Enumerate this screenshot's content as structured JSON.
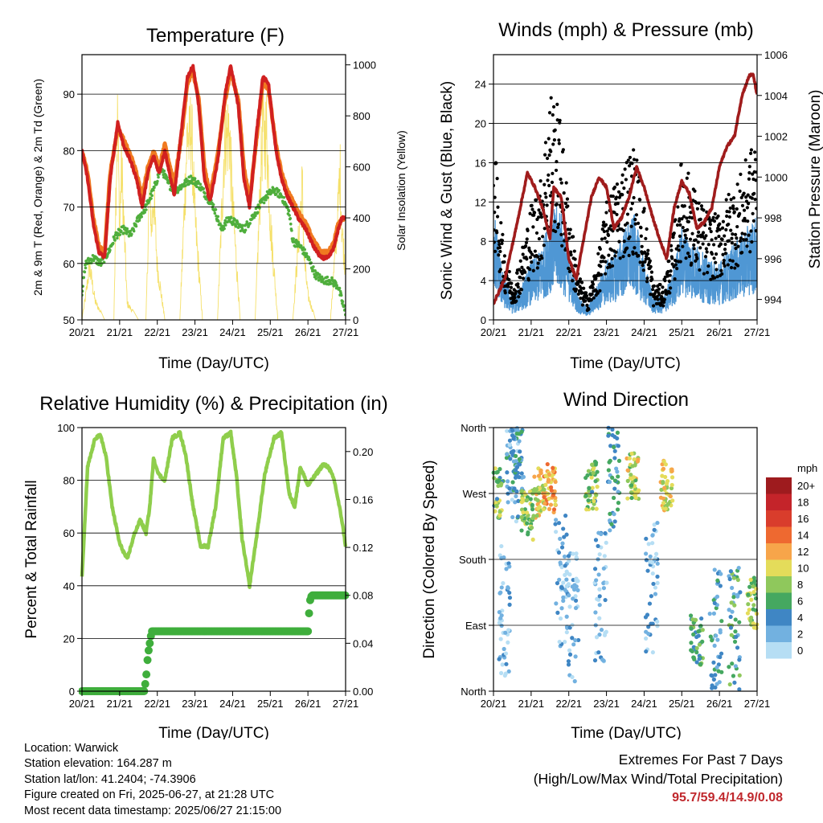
{
  "footer": {
    "location": "Location: Warwick",
    "elevation": "Station elevation: 164.287 m",
    "latlon": "Station lat/lon: 41.2404; -74.3906",
    "created": "Figure created on Fri, 2025-06-27, at 21:28 UTC",
    "recent": "Most recent data timestamp: 2025/06/27 21:15:00"
  },
  "extremes": {
    "line1": "Extremes For Past 7 Days",
    "line2": "(High/Low/Max Wind/Total Precipitation)",
    "values": "95.7/59.4/14.9/0.08"
  },
  "colors": {
    "temp_2m": "#d12020",
    "temp_9m": "#f07a20",
    "dewpoint": "#4fae3c",
    "solar": "#f5e06a",
    "wind": "#4f97d4",
    "gust": "#000000",
    "pressure": "#a01c1c",
    "rh": "#8fce4c",
    "rain": "#3fae3c"
  },
  "chart_data": [
    {
      "type": "line",
      "title": "Temperature (F)",
      "xlabel": "Time (Day/UTC)",
      "ylabel": "2m & 9m T (Red, Orange) & 2m Td (Green)",
      "y2label": "Solar Insolation (Yellow)",
      "x_ticks": [
        "20/21",
        "21/21",
        "22/21",
        "23/21",
        "24/21",
        "25/21",
        "26/21",
        "27/21"
      ],
      "xlim": [
        0,
        7
      ],
      "ylim": [
        50,
        97
      ],
      "y_ticks": [
        50,
        60,
        70,
        80,
        90
      ],
      "y2lim": [
        0,
        1040
      ],
      "y2_ticks": [
        0,
        200,
        400,
        600,
        800,
        1000
      ],
      "grid": true,
      "series": [
        {
          "key": "temp_2m",
          "axis": "left",
          "x": [
            0,
            0.15,
            0.3,
            0.45,
            0.6,
            0.75,
            0.95,
            1.1,
            1.3,
            1.45,
            1.6,
            1.75,
            1.9,
            2.05,
            2.2,
            2.45,
            2.65,
            2.8,
            2.95,
            3.1,
            3.25,
            3.4,
            3.6,
            3.8,
            3.95,
            4.15,
            4.3,
            4.45,
            4.65,
            4.8,
            4.95,
            5.15,
            5.3,
            5.45,
            5.6,
            5.75,
            5.95,
            6.15,
            6.35,
            6.55,
            6.7,
            6.8,
            6.9,
            7
          ],
          "y": [
            80,
            75,
            67,
            62,
            61,
            75,
            85,
            81,
            78,
            75,
            70,
            76,
            79,
            76,
            80,
            72,
            84,
            93,
            95,
            88,
            75,
            71,
            78,
            90,
            95,
            88,
            75,
            70,
            84,
            93,
            92,
            80,
            75,
            72,
            70,
            68,
            66,
            63,
            61,
            61,
            63,
            66,
            68,
            68
          ]
        },
        {
          "key": "temp_9m",
          "axis": "left",
          "x": [
            0,
            0.15,
            0.3,
            0.45,
            0.6,
            0.75,
            0.95,
            1.1,
            1.3,
            1.45,
            1.6,
            1.75,
            1.9,
            2.05,
            2.2,
            2.45,
            2.65,
            2.8,
            2.95,
            3.1,
            3.25,
            3.4,
            3.6,
            3.8,
            3.95,
            4.15,
            4.3,
            4.45,
            4.65,
            4.8,
            4.95,
            5.15,
            5.3,
            5.45,
            5.6,
            5.75,
            5.95,
            6.15,
            6.35,
            6.55,
            6.7,
            6.8,
            6.9,
            7
          ],
          "y": [
            80,
            76,
            68,
            63,
            62,
            76,
            84,
            82,
            79,
            76,
            72,
            77,
            80,
            77,
            81,
            74,
            83,
            92,
            94,
            89,
            77,
            72,
            79,
            89,
            94,
            89,
            77,
            71,
            83,
            92,
            91,
            81,
            76,
            73,
            71,
            69,
            67,
            64,
            62,
            62,
            64,
            67,
            68,
            68
          ]
        },
        {
          "key": "dewpoint",
          "axis": "left",
          "x": [
            0,
            0.1,
            0.3,
            0.5,
            0.7,
            0.9,
            1.1,
            1.3,
            1.5,
            1.7,
            1.9,
            2.1,
            2.3,
            2.5,
            2.7,
            2.9,
            3.1,
            3.3,
            3.5,
            3.7,
            3.9,
            4.1,
            4.3,
            4.5,
            4.7,
            4.9,
            5.1,
            5.3,
            5.5,
            5.6,
            5.8,
            6.0,
            6.2,
            6.4,
            6.6,
            6.8,
            7
          ],
          "y": [
            55,
            60,
            61,
            60,
            62,
            65,
            66,
            65,
            68,
            70,
            73,
            77,
            74,
            73,
            74,
            75,
            74,
            72,
            70,
            66,
            68,
            67,
            66,
            68,
            70,
            72,
            73,
            72,
            69,
            64,
            63,
            61,
            58,
            57,
            57,
            56,
            51
          ]
        },
        {
          "key": "solar",
          "axis": "right",
          "x": [
            0,
            0.1,
            0.2,
            0.35,
            0.6,
            0.85,
            0.9,
            0.95,
            1.0,
            1.05,
            1.2,
            1.5,
            1.7,
            1.8,
            1.85,
            1.9,
            2.0,
            2.2,
            2.6,
            2.8,
            2.85,
            2.9,
            3.0,
            3.2,
            3.6,
            3.8,
            3.85,
            3.9,
            4.0,
            4.2,
            4.6,
            4.8,
            4.85,
            4.9,
            5.0,
            5.2,
            5.6,
            5.8,
            5.85,
            5.9,
            6.0,
            6.2,
            6.6,
            6.8,
            6.85,
            6.9,
            7
          ],
          "y": [
            0,
            120,
            260,
            90,
            0,
            0,
            650,
            1000,
            420,
            760,
            80,
            0,
            0,
            700,
            420,
            620,
            260,
            0,
            0,
            930,
            850,
            960,
            500,
            0,
            0,
            940,
            880,
            960,
            560,
            0,
            0,
            950,
            870,
            940,
            480,
            0,
            0,
            520,
            660,
            300,
            120,
            0,
            0,
            530,
            740,
            450,
            240
          ]
        }
      ]
    },
    {
      "type": "line",
      "title": "Winds (mph) & Pressure (mb)",
      "xlabel": "Time (Day/UTC)",
      "ylabel": "Sonic Wind & Gust (Blue, Black)",
      "y2label": "Station Pressure (Maroon)",
      "x_ticks": [
        "20/21",
        "21/21",
        "22/21",
        "23/21",
        "24/21",
        "25/21",
        "26/21",
        "27/21"
      ],
      "xlim": [
        0,
        7
      ],
      "ylim": [
        0,
        27
      ],
      "y_ticks": [
        0,
        4,
        8,
        12,
        16,
        20,
        24
      ],
      "y2lim": [
        993.0,
        1006.0
      ],
      "y2_ticks": [
        994,
        996,
        998,
        1000,
        1002,
        1004,
        1006
      ],
      "grid": true,
      "series": [
        {
          "key": "wind",
          "axis": "left",
          "x": [
            0,
            0.25,
            0.5,
            0.75,
            1.0,
            1.25,
            1.5,
            1.75,
            2.0,
            2.25,
            2.5,
            2.75,
            3.0,
            3.25,
            3.5,
            3.75,
            4.0,
            4.25,
            4.5,
            4.75,
            5.0,
            5.25,
            5.5,
            5.75,
            6.0,
            6.25,
            6.5,
            6.75,
            7
          ],
          "y": [
            10,
            4,
            2,
            3,
            5,
            6,
            9,
            10,
            6,
            2,
            1,
            3,
            5,
            6,
            8,
            9,
            5,
            2,
            2,
            4,
            8,
            7,
            6,
            5,
            5,
            6,
            7,
            8,
            9
          ]
        },
        {
          "key": "gust",
          "axis": "left",
          "x": [
            0,
            0.25,
            0.5,
            0.75,
            1.0,
            1.25,
            1.5,
            1.75,
            2.0,
            2.25,
            2.5,
            2.75,
            3.0,
            3.25,
            3.5,
            3.75,
            4.0,
            4.25,
            4.5,
            4.75,
            5.0,
            5.25,
            5.5,
            5.75,
            6.0,
            6.25,
            6.5,
            6.75,
            7
          ],
          "y": [
            16,
            7,
            3,
            6,
            10,
            12,
            20,
            18,
            10,
            4,
            2,
            5,
            10,
            12,
            14,
            15,
            10,
            3,
            3,
            7,
            14,
            12,
            10,
            9,
            9,
            11,
            12,
            14,
            16
          ]
        },
        {
          "key": "pressure",
          "axis": "right",
          "x": [
            0,
            0.3,
            0.6,
            0.9,
            1.1,
            1.3,
            1.5,
            1.6,
            1.8,
            2.0,
            2.2,
            2.4,
            2.6,
            2.8,
            3.0,
            3.2,
            3.4,
            3.6,
            3.8,
            4.0,
            4.2,
            4.4,
            4.6,
            4.8,
            5.0,
            5.2,
            5.4,
            5.6,
            5.8,
            6.0,
            6.2,
            6.4,
            6.6,
            6.8,
            6.9,
            7
          ],
          "y": [
            993.8,
            995.0,
            997.5,
            1000.2,
            999.5,
            998.5,
            997.0,
            999.5,
            999.0,
            996.0,
            995.0,
            997.0,
            999.0,
            1000.0,
            999.5,
            997.5,
            998.0,
            999.0,
            1000.5,
            999.5,
            998.2,
            997.0,
            996.0,
            998.5,
            999.8,
            999.2,
            997.5,
            997.8,
            998.5,
            1000.5,
            1001.5,
            1002.0,
            1004.0,
            1005.0,
            1005.0,
            1004.0
          ]
        }
      ]
    },
    {
      "type": "line",
      "title": "Relative Humidity (%) & Precipitation (in)",
      "xlabel": "Time (Day/UTC)",
      "ylabel": "Percent & Total Rainfall",
      "x_ticks": [
        "20/21",
        "21/21",
        "22/21",
        "23/21",
        "24/21",
        "25/21",
        "26/21",
        "27/21"
      ],
      "xlim": [
        0,
        7
      ],
      "ylim": [
        0,
        100
      ],
      "y_ticks": [
        0,
        20,
        40,
        60,
        80,
        100
      ],
      "y2lim": [
        0,
        0.22
      ],
      "y2_ticks": [
        "0.00",
        "0.04",
        "0.08",
        "0.12",
        "0.16",
        "0.20"
      ],
      "grid": true,
      "series": [
        {
          "key": "rh",
          "axis": "left",
          "x": [
            0,
            0.15,
            0.35,
            0.5,
            0.65,
            0.8,
            1.0,
            1.2,
            1.4,
            1.55,
            1.7,
            1.8,
            1.9,
            2.05,
            2.2,
            2.4,
            2.6,
            2.75,
            2.95,
            3.15,
            3.35,
            3.55,
            3.75,
            3.95,
            4.1,
            4.25,
            4.45,
            4.65,
            4.85,
            5.1,
            5.3,
            5.5,
            5.65,
            5.8,
            6.0,
            6.2,
            6.4,
            6.55,
            6.7,
            6.9,
            7
          ],
          "y": [
            43,
            85,
            96,
            97,
            88,
            70,
            56,
            50,
            60,
            65,
            60,
            70,
            88,
            82,
            80,
            96,
            98,
            90,
            70,
            55,
            55,
            70,
            96,
            98,
            82,
            58,
            40,
            60,
            82,
            96,
            98,
            75,
            70,
            85,
            78,
            82,
            86,
            85,
            80,
            65,
            55
          ]
        },
        {
          "key": "rain",
          "axis": "right",
          "x": [
            0,
            1.65,
            1.7,
            1.75,
            1.8,
            1.85,
            2.0,
            6.0,
            6.02,
            6.05,
            6.1,
            7
          ],
          "y": [
            0,
            0,
            0.01,
            0.03,
            0.04,
            0.05,
            0.05,
            0.05,
            0.06,
            0.075,
            0.08,
            0.08
          ]
        }
      ]
    },
    {
      "type": "scatter",
      "title": "Wind Direction",
      "xlabel": "Time (Day/UTC)",
      "ylabel": "Direction (Colored By Speed)",
      "x_ticks": [
        "20/21",
        "21/21",
        "22/21",
        "23/21",
        "24/21",
        "25/21",
        "26/21",
        "27/21"
      ],
      "xlim": [
        0,
        7
      ],
      "ylim": [
        0,
        360
      ],
      "y_tick_labels": [
        "North",
        "East",
        "South",
        "West",
        "North"
      ],
      "y_ticks": [
        0,
        90,
        180,
        270,
        360
      ],
      "grid": true,
      "legend": {
        "title": "mph",
        "placement": "right",
        "levels": [
          "20+",
          "18",
          "16",
          "14",
          "12",
          "10",
          "8",
          "6",
          "4",
          "2",
          "0"
        ],
        "colors": [
          "#9e1b1e",
          "#c4242a",
          "#d93d2c",
          "#ee6930",
          "#f7a54a",
          "#e4dc5a",
          "#8fc85c",
          "#45a860",
          "#3f86c4",
          "#72b1e0",
          "#b6def4"
        ]
      },
      "clusters": [
        {
          "x": 0.1,
          "dir": 270,
          "speed": 7
        },
        {
          "x": 0.3,
          "dir": 110,
          "speed": 2
        },
        {
          "x": 0.5,
          "dir": 320,
          "speed": 3
        },
        {
          "x": 0.65,
          "dir": 340,
          "speed": 4
        },
        {
          "x": 0.9,
          "dir": 240,
          "speed": 8
        },
        {
          "x": 1.2,
          "dir": 270,
          "speed": 10
        },
        {
          "x": 1.5,
          "dir": 275,
          "speed": 12
        },
        {
          "x": 1.8,
          "dir": 150,
          "speed": 2
        },
        {
          "x": 2.1,
          "dir": 100,
          "speed": 2
        },
        {
          "x": 2.6,
          "dir": 280,
          "speed": 7
        },
        {
          "x": 2.85,
          "dir": 130,
          "speed": 2
        },
        {
          "x": 3.2,
          "dir": 300,
          "speed": 4
        },
        {
          "x": 3.7,
          "dir": 290,
          "speed": 9
        },
        {
          "x": 4.2,
          "dir": 140,
          "speed": 2
        },
        {
          "x": 4.6,
          "dir": 280,
          "speed": 10
        },
        {
          "x": 5.4,
          "dir": 70,
          "speed": 6
        },
        {
          "x": 5.9,
          "dir": 80,
          "speed": 4
        },
        {
          "x": 6.4,
          "dir": 80,
          "speed": 5
        },
        {
          "x": 6.9,
          "dir": 120,
          "speed": 8
        }
      ]
    }
  ]
}
